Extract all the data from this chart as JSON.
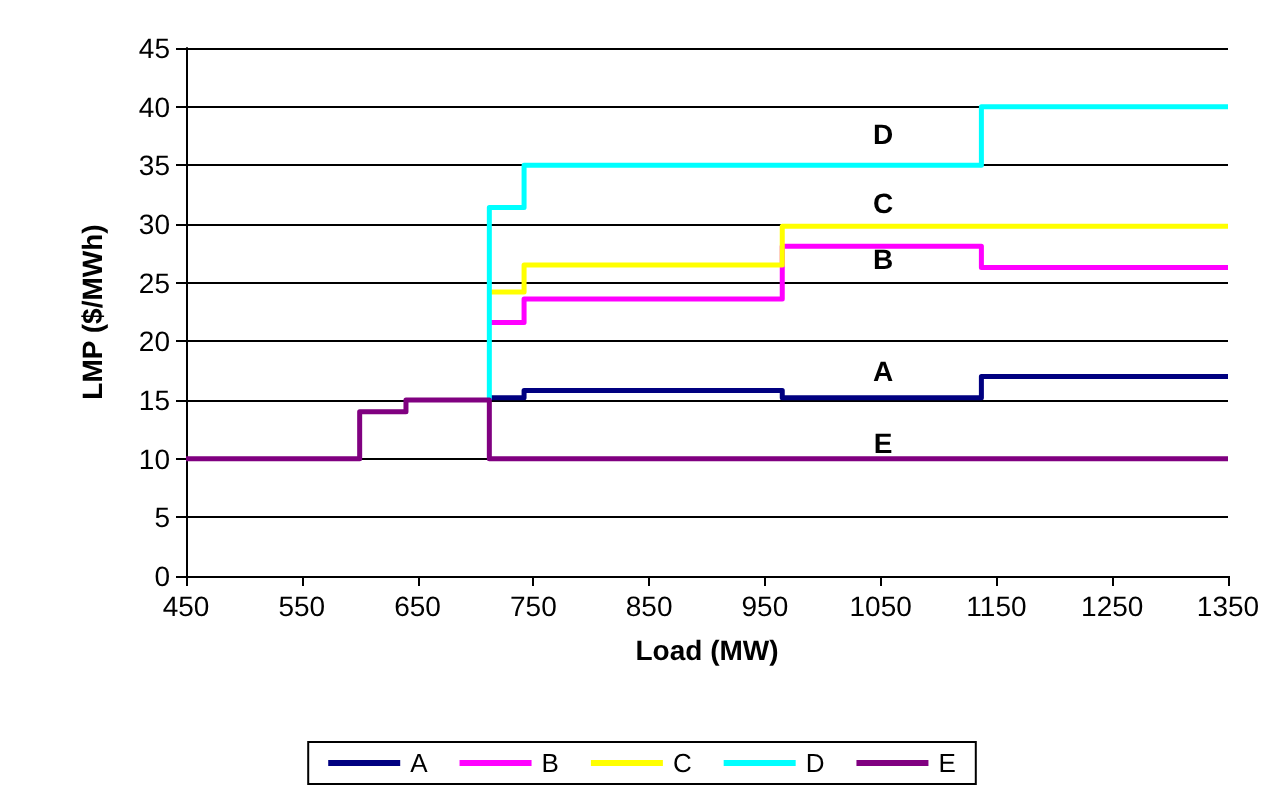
{
  "chart_data": {
    "type": "step",
    "xlabel": "Load (MW)",
    "ylabel": "LMP ($/MWh)",
    "xlim": [
      450,
      1350
    ],
    "xticks": [
      450,
      550,
      650,
      750,
      850,
      950,
      1050,
      1150,
      1250,
      1350
    ],
    "ylim": [
      0,
      45
    ],
    "yticks": [
      0,
      5,
      10,
      15,
      20,
      25,
      30,
      35,
      40,
      45
    ],
    "grid": "y",
    "legend": "bottom",
    "marker": "none",
    "line_style": "solid",
    "series": [
      {
        "name": "A",
        "color": "#000080",
        "x": [
          712,
          742,
          965,
          1137,
          1350
        ],
        "values": [
          15.2,
          15.8,
          15.2,
          17,
          17
        ]
      },
      {
        "name": "B",
        "color": "#ff00ff",
        "x": [
          712,
          742,
          965,
          1137,
          1350
        ],
        "values": [
          21.6,
          23.6,
          28.1,
          26.3,
          26.3
        ]
      },
      {
        "name": "C",
        "color": "#ffff00",
        "x": [
          712,
          742,
          965,
          1350
        ],
        "values": [
          24.2,
          26.5,
          29.8,
          29.8
        ]
      },
      {
        "name": "D",
        "color": "#00ffff",
        "x": [
          712,
          712,
          742,
          1137,
          1350
        ],
        "values": [
          15,
          31.4,
          35,
          40,
          40
        ]
      },
      {
        "name": "E",
        "color": "#800080",
        "x": [
          450,
          600,
          640,
          712,
          1350
        ],
        "values": [
          10,
          14,
          15,
          10,
          10
        ]
      }
    ],
    "annotations": [
      "D",
      "C",
      "B",
      "A",
      "E"
    ]
  }
}
